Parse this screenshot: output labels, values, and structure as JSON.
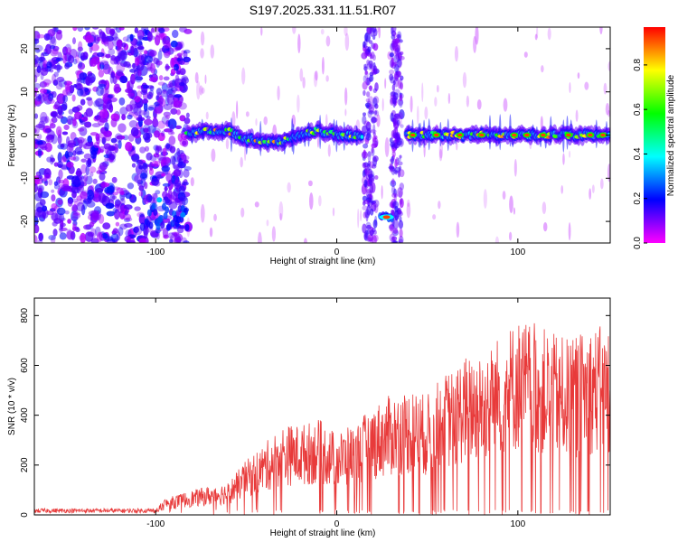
{
  "title": "S197.2025.331.11.51.R07",
  "chart_data": [
    {
      "type": "heatmap",
      "xlabel": "Height of straight line (km)",
      "ylabel": "Frequency (Hz)",
      "xlim": [
        -167,
        151
      ],
      "ylim": [
        -25,
        25
      ],
      "xticks": [
        -100,
        0,
        100
      ],
      "yticks": [
        -20,
        -10,
        0,
        10,
        20
      ],
      "colorbar": {
        "label": "Normalized spectral amplitude",
        "range": [
          0,
          0.97
        ],
        "ticks": [
          0.0,
          0.2,
          0.4,
          0.6,
          0.8
        ],
        "colormap": [
          "#ff00ff",
          "#7f00ff",
          "#0000ff",
          "#0080ff",
          "#00ffff",
          "#00ff80",
          "#00ff00",
          "#80ff00",
          "#ffff00",
          "#ff8000",
          "#ff0000"
        ]
      },
      "features": {
        "noise_region_x": [
          -167,
          -82
        ],
        "main_ridge": [
          [
            -82,
            0
          ],
          [
            -72,
            1
          ],
          [
            -60,
            1
          ],
          [
            -50,
            -1
          ],
          [
            -40,
            -1.5
          ],
          [
            -30,
            -1.5
          ],
          [
            -20,
            0
          ],
          [
            -10,
            1
          ],
          [
            0,
            0
          ],
          [
            15,
            0
          ],
          [
            38,
            0
          ],
          [
            60,
            0
          ],
          [
            90,
            0
          ],
          [
            120,
            0
          ],
          [
            151,
            0
          ]
        ],
        "low_freq_patch_1": {
          "x": [
            -105,
            -82
          ],
          "freq": -19
        },
        "low_freq_patch_2": {
          "x": [
            24,
            31
          ],
          "freq": -19
        },
        "strip_1_x": [
          15,
          22
        ],
        "strip_2_x": [
          30,
          36
        ]
      }
    },
    {
      "type": "line",
      "xlabel": "Height of straight line (km)",
      "ylabel": "SNR (10 * v/v)",
      "xlim": [
        -167,
        151
      ],
      "ylim": [
        0,
        870
      ],
      "xticks": [
        -100,
        0,
        100
      ],
      "yticks": [
        0,
        200,
        400,
        600,
        800
      ],
      "series": [
        {
          "name": "SNR",
          "color": "#e83a3a",
          "envelope": [
            [
              -167,
              20
            ],
            [
              -100,
              20
            ],
            [
              -95,
              60
            ],
            [
              -80,
              90
            ],
            [
              -60,
              120
            ],
            [
              -50,
              200
            ],
            [
              -40,
              260
            ],
            [
              -30,
              330
            ],
            [
              -20,
              330
            ],
            [
              -10,
              350
            ],
            [
              0,
              300
            ],
            [
              10,
              330
            ],
            [
              20,
              400
            ],
            [
              30,
              440
            ],
            [
              40,
              460
            ],
            [
              50,
              440
            ],
            [
              60,
              520
            ],
            [
              70,
              580
            ],
            [
              80,
              600
            ],
            [
              90,
              660
            ],
            [
              100,
              720
            ],
            [
              110,
              700
            ],
            [
              120,
              660
            ],
            [
              130,
              640
            ],
            [
              140,
              690
            ],
            [
              151,
              690
            ]
          ]
        }
      ]
    }
  ]
}
